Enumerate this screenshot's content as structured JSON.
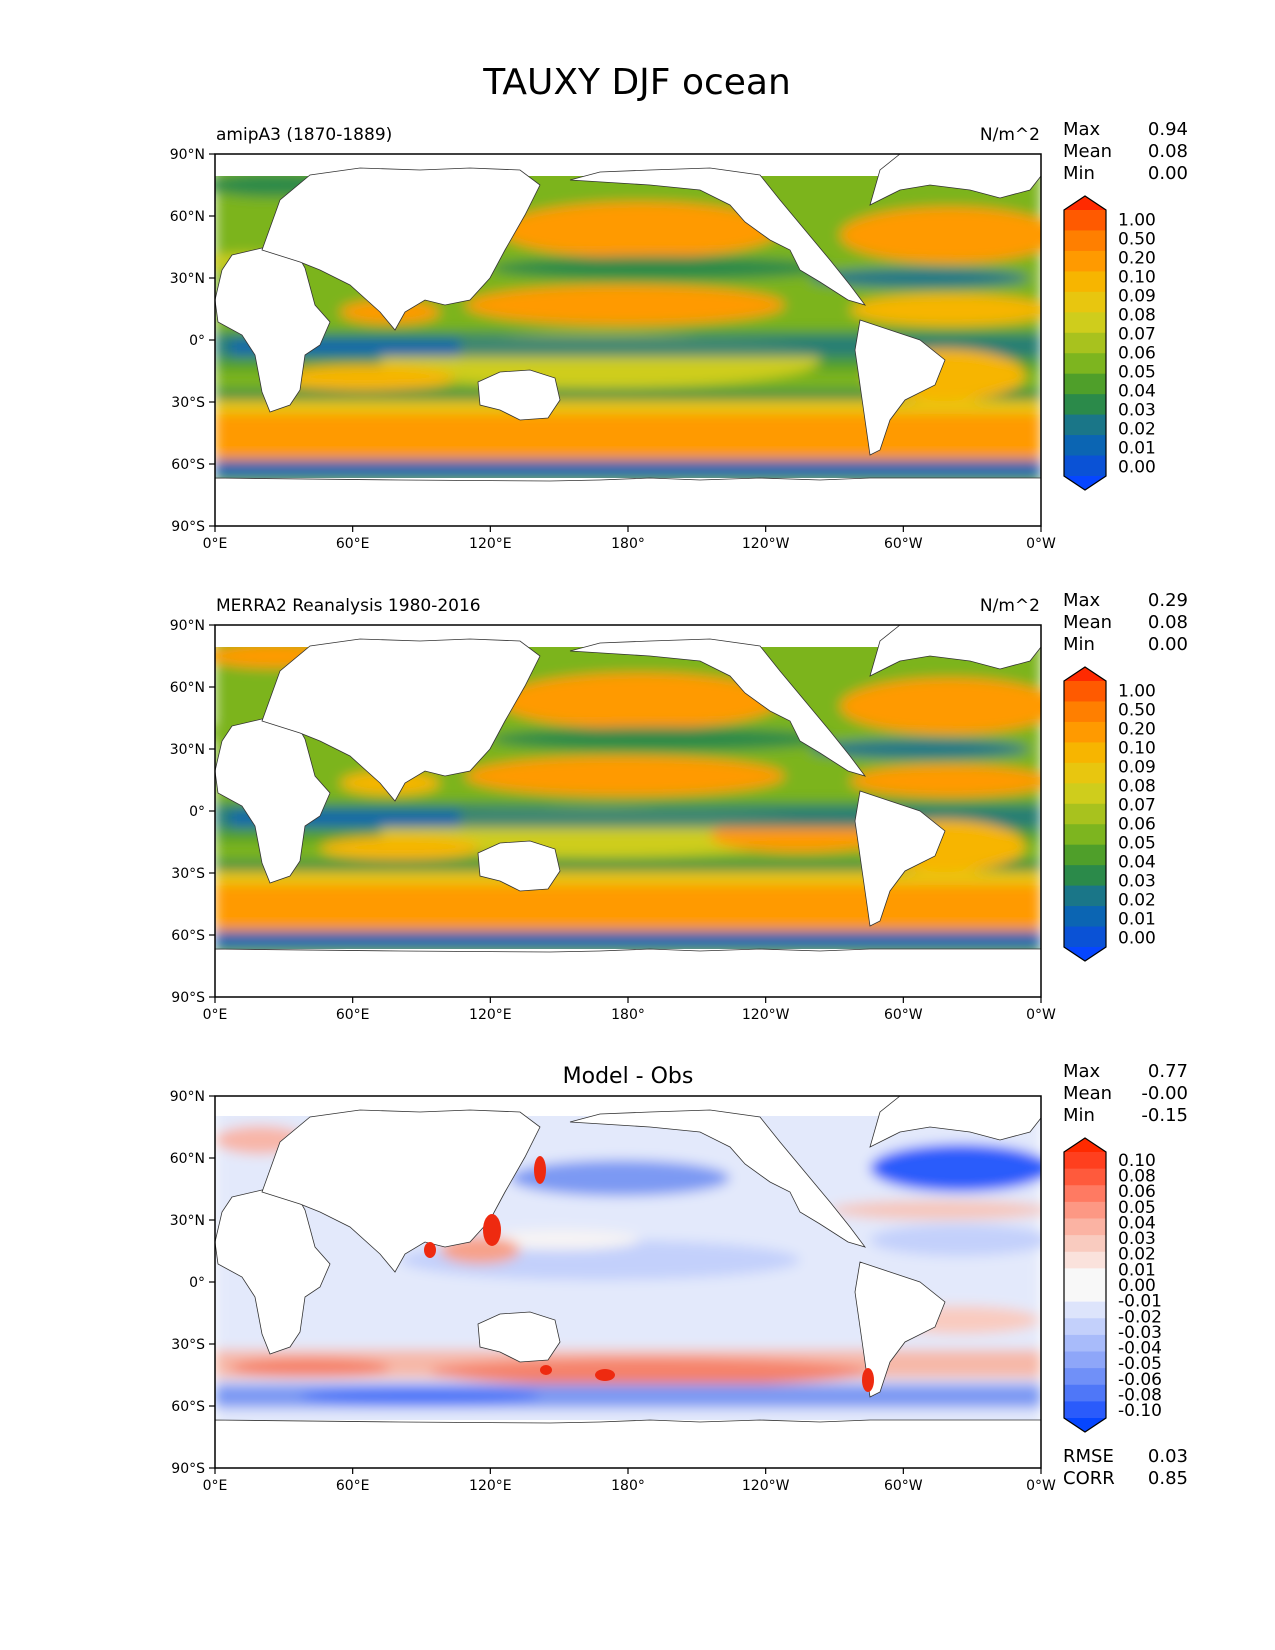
{
  "title": "TAUXY DJF ocean",
  "axes": {
    "lat_ticks": [
      "90°N",
      "60°N",
      "30°N",
      "0°",
      "30°S",
      "60°S",
      "90°S"
    ],
    "lon_ticks": [
      "0°E",
      "60°E",
      "120°E",
      "180°",
      "120°W",
      "60°W",
      "0°W"
    ]
  },
  "panels": [
    {
      "id": "model",
      "left_label": "amipA3 (1870-1889)",
      "right_label": "N/m^2",
      "center_label": "",
      "stats": [
        {
          "label": "Max",
          "value": "0.94"
        },
        {
          "label": "Mean",
          "value": "0.08"
        },
        {
          "label": "Min",
          "value": "0.00"
        }
      ],
      "colorbar_ticks": [
        "1.00",
        "0.50",
        "0.20",
        "0.10",
        "0.09",
        "0.08",
        "0.07",
        "0.06",
        "0.05",
        "0.04",
        "0.03",
        "0.02",
        "0.01",
        "0.00"
      ],
      "colorbar_colors": [
        "#ff2a00",
        "#ff5a00",
        "#ff7f00",
        "#ff9a00",
        "#f7b500",
        "#e8c60f",
        "#cfcd1c",
        "#a8c21e",
        "#7db51f",
        "#4f9f2a",
        "#2b8a4a",
        "#1a7688",
        "#0b65b3",
        "#0a52d6",
        "#0646ff"
      ],
      "bottom_stats": []
    },
    {
      "id": "obs",
      "left_label": "MERRA2 Reanalysis 1980-2016",
      "right_label": "N/m^2",
      "center_label": "",
      "stats": [
        {
          "label": "Max",
          "value": "0.29"
        },
        {
          "label": "Mean",
          "value": "0.08"
        },
        {
          "label": "Min",
          "value": "0.00"
        }
      ],
      "colorbar_ticks": [
        "1.00",
        "0.50",
        "0.20",
        "0.10",
        "0.09",
        "0.08",
        "0.07",
        "0.06",
        "0.05",
        "0.04",
        "0.03",
        "0.02",
        "0.01",
        "0.00"
      ],
      "colorbar_colors": [
        "#ff2a00",
        "#ff5a00",
        "#ff7f00",
        "#ff9a00",
        "#f7b500",
        "#e8c60f",
        "#cfcd1c",
        "#a8c21e",
        "#7db51f",
        "#4f9f2a",
        "#2b8a4a",
        "#1a7688",
        "#0b65b3",
        "#0a52d6",
        "#0646ff"
      ],
      "bottom_stats": []
    },
    {
      "id": "diff",
      "left_label": "",
      "right_label": "",
      "center_label": "Model - Obs",
      "stats": [
        {
          "label": "Max",
          "value": "0.77"
        },
        {
          "label": "Mean",
          "value": "-0.00"
        },
        {
          "label": "Min",
          "value": "-0.15"
        }
      ],
      "colorbar_ticks": [
        "0.10",
        "0.08",
        "0.06",
        "0.05",
        "0.04",
        "0.03",
        "0.02",
        "0.01",
        "0.00",
        "-0.01",
        "-0.02",
        "-0.03",
        "-0.04",
        "-0.05",
        "-0.06",
        "-0.08",
        "-0.10"
      ],
      "colorbar_colors": [
        "#ff2a00",
        "#ff3f1e",
        "#ff5a3c",
        "#ff7a62",
        "#fd9884",
        "#fbb3a3",
        "#f9cbbf",
        "#fae2dc",
        "#f8f8f8",
        "#f8f8f8",
        "#dde4fb",
        "#c3d0fb",
        "#a8bbfa",
        "#8ea6f9",
        "#7090f8",
        "#4f77f8",
        "#2a5bfb",
        "#0646ff"
      ],
      "bottom_stats": [
        {
          "label": "RMSE",
          "value": "0.03"
        },
        {
          "label": "CORR",
          "value": "0.85"
        }
      ]
    }
  ]
}
